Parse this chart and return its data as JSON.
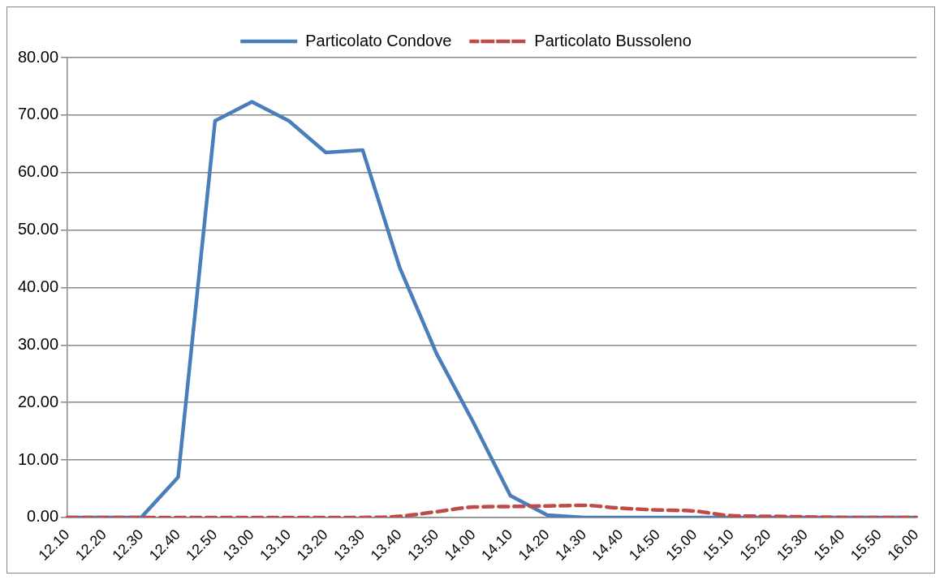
{
  "chart_data": {
    "type": "line",
    "categories": [
      "12.10",
      "12.20",
      "12.30",
      "12.40",
      "12.50",
      "13.00",
      "13.10",
      "13.20",
      "13.30",
      "13.40",
      "13.50",
      "14.00",
      "14.10",
      "14.20",
      "14.30",
      "14.40",
      "14.50",
      "15.00",
      "15.10",
      "15.20",
      "15.30",
      "15.40",
      "15.50",
      "16.00"
    ],
    "series": [
      {
        "name": "Particolato Condove",
        "color": "#4a7ebb",
        "line_style": "solid",
        "values": [
          0,
          0,
          0,
          7.0,
          69.0,
          72.3,
          69.0,
          63.5,
          63.9,
          43.5,
          28.5,
          16.5,
          3.8,
          0.4,
          0,
          0,
          0,
          0,
          0,
          0,
          0,
          0,
          0,
          0
        ]
      },
      {
        "name": "Particolato Bussoleno",
        "color": "#be4b48",
        "line_style": "dashed",
        "values": [
          0,
          0,
          0,
          0,
          0,
          0,
          0,
          0,
          0,
          0.2,
          1.0,
          1.8,
          1.9,
          2.0,
          2.1,
          1.6,
          1.3,
          1.1,
          0.3,
          0.2,
          0.1,
          0,
          0,
          0
        ]
      }
    ],
    "ylim": [
      0,
      80
    ],
    "yticks": [
      {
        "value": 0,
        "label": "0.00"
      },
      {
        "value": 10,
        "label": "10.00"
      },
      {
        "value": 20,
        "label": "20.00"
      },
      {
        "value": 30,
        "label": "30.00"
      },
      {
        "value": 40,
        "label": "40.00"
      },
      {
        "value": 50,
        "label": "50.00"
      },
      {
        "value": 60,
        "label": "60.00"
      },
      {
        "value": 70,
        "label": "70.00"
      },
      {
        "value": 80,
        "label": "80.00"
      }
    ],
    "grid": "y",
    "legend": "top",
    "marker": "none"
  }
}
